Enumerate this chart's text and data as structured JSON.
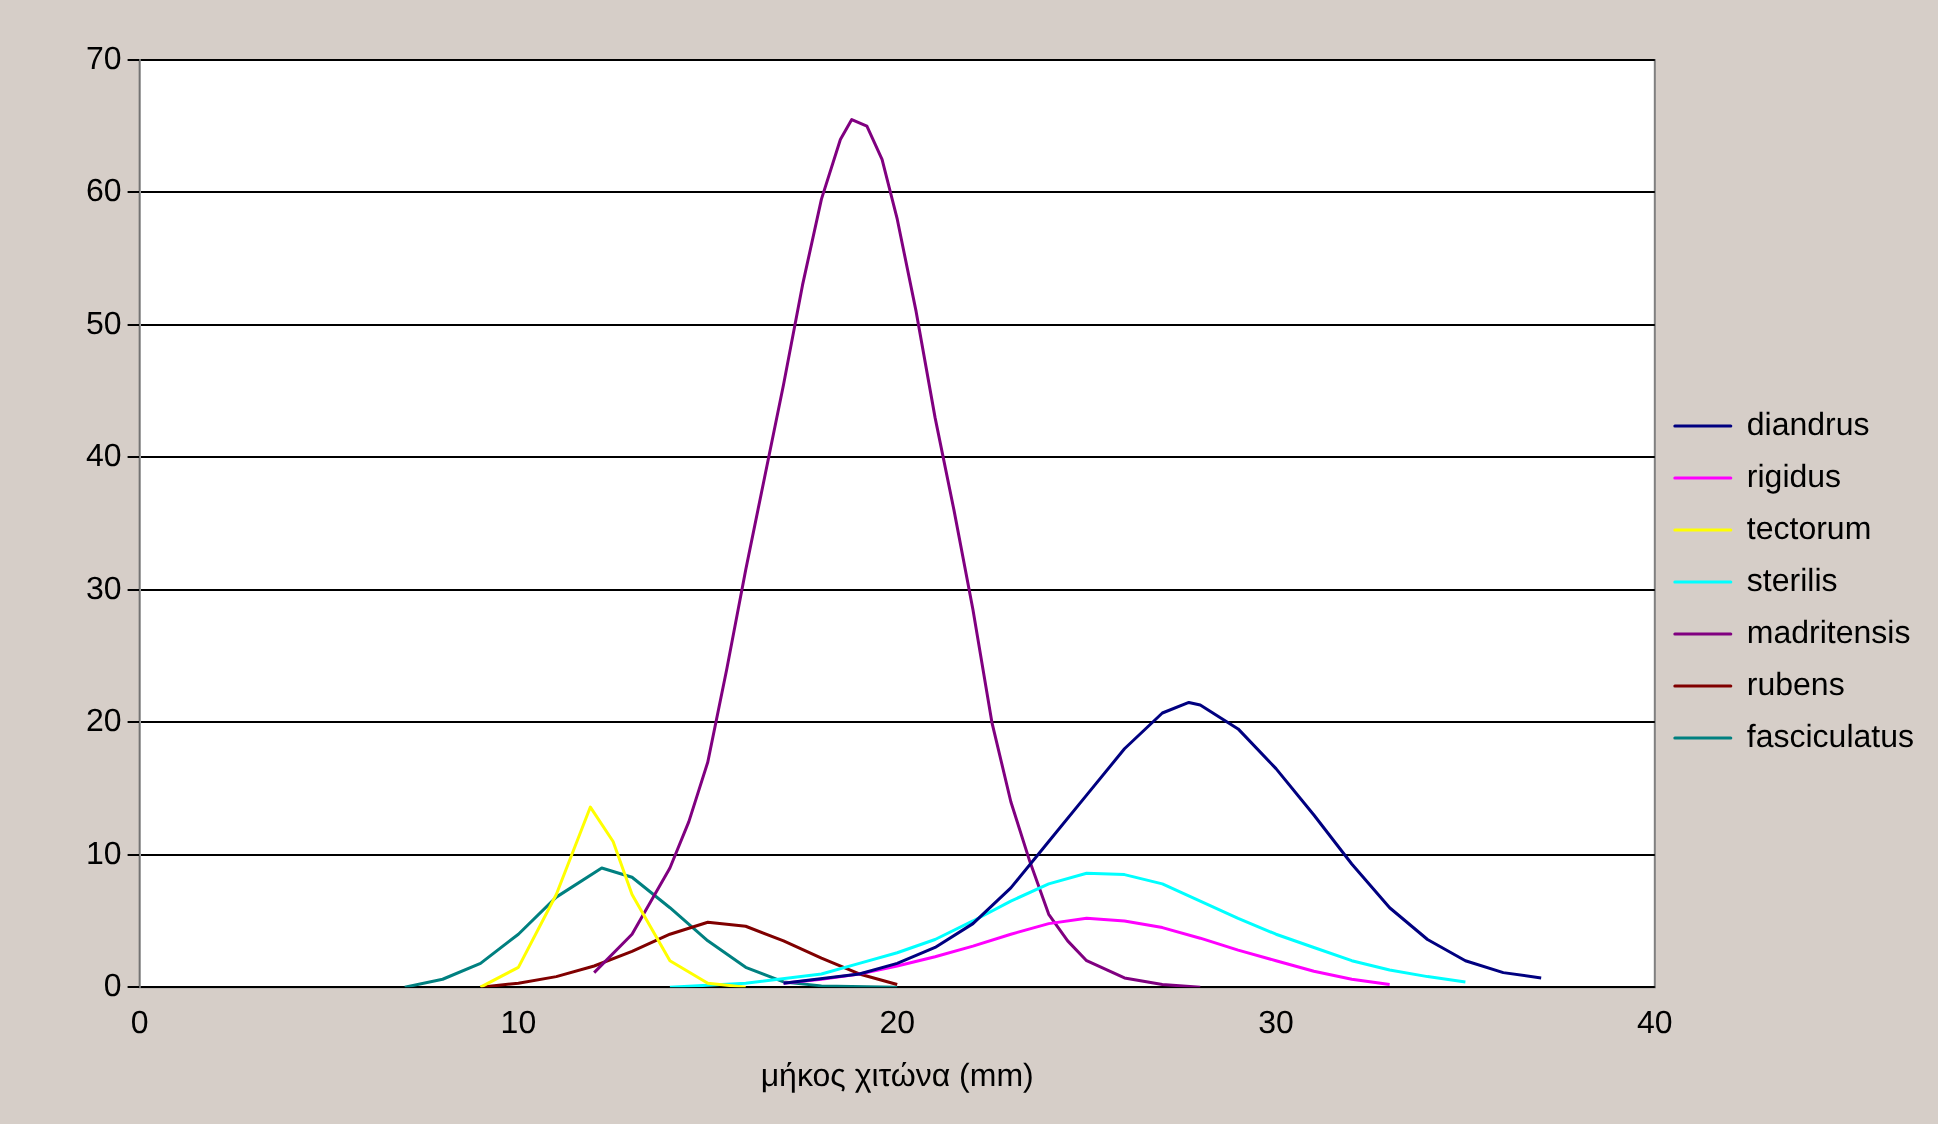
{
  "chart_data": {
    "type": "line",
    "xlabel": "μήκος χιτώνα (mm)",
    "xlim": [
      0,
      40
    ],
    "xticks": [
      0,
      10,
      20,
      30,
      40
    ],
    "ylim": [
      0,
      70
    ],
    "yticks": [
      0,
      10,
      20,
      30,
      40,
      50,
      60,
      70
    ],
    "grid": "y",
    "legend": "right",
    "marker": "none",
    "line_style": "solid",
    "series": [
      {
        "name": "diandrus",
        "color": "#000080",
        "x": [
          17,
          19,
          20,
          21,
          22,
          23,
          24,
          25,
          26,
          27,
          27.7,
          28,
          29,
          30,
          31,
          32,
          33,
          34,
          35,
          36,
          37
        ],
        "values": [
          0.3,
          1,
          1.8,
          3,
          4.8,
          7.5,
          11,
          14.5,
          18,
          20.7,
          21.5,
          21.3,
          19.5,
          16.5,
          13,
          9.3,
          6,
          3.6,
          2,
          1.1,
          0.7
        ]
      },
      {
        "name": "rigidus",
        "color": "#ff00ff",
        "x": [
          17,
          18,
          19,
          20,
          21,
          22,
          23,
          24,
          25,
          26,
          27,
          28,
          29,
          30,
          31,
          32,
          33
        ],
        "values": [
          0.3,
          0.6,
          1,
          1.6,
          2.3,
          3.1,
          4,
          4.8,
          5.2,
          5,
          4.5,
          3.7,
          2.8,
          2,
          1.2,
          0.6,
          0.2
        ]
      },
      {
        "name": "tectorum",
        "color": "#ffff00",
        "x": [
          9,
          10,
          11,
          11.9,
          12.5,
          13,
          14,
          15,
          16
        ],
        "values": [
          0,
          1.5,
          7,
          13.6,
          11,
          7,
          2,
          0.3,
          0
        ]
      },
      {
        "name": "sterilis",
        "color": "#00ffff",
        "x": [
          14,
          16,
          18,
          19,
          20,
          21,
          22,
          23,
          24,
          25,
          26,
          27,
          28,
          29,
          30,
          31,
          32,
          33,
          34,
          35
        ],
        "values": [
          0,
          0.3,
          1,
          1.8,
          2.6,
          3.6,
          5,
          6.5,
          7.8,
          8.6,
          8.5,
          7.8,
          6.5,
          5.2,
          4,
          3,
          2,
          1.3,
          0.8,
          0.4
        ]
      },
      {
        "name": "madritensis",
        "color": "#800080",
        "x": [
          12,
          13,
          14,
          14.5,
          15,
          15.5,
          16,
          16.5,
          17,
          17.5,
          18,
          18.5,
          18.8,
          19.2,
          19.6,
          20,
          20.5,
          21,
          21.5,
          22,
          22.5,
          23,
          23.5,
          24,
          24.5,
          25,
          26,
          27,
          28
        ],
        "values": [
          1.1,
          4,
          9,
          12.5,
          17,
          24,
          31.5,
          38.5,
          45.5,
          53,
          59.5,
          64,
          65.5,
          65,
          62.5,
          58,
          51,
          43,
          36,
          28.5,
          20,
          14,
          9.5,
          5.5,
          3.5,
          2,
          0.7,
          0.2,
          0
        ]
      },
      {
        "name": "rubens",
        "color": "#800000",
        "x": [
          9,
          10,
          11,
          12,
          13,
          14,
          15,
          16,
          17,
          18,
          19,
          20
        ],
        "values": [
          0,
          0.3,
          0.8,
          1.6,
          2.7,
          4,
          4.9,
          4.6,
          3.5,
          2.2,
          1,
          0.2
        ]
      },
      {
        "name": "fasciculatus",
        "color": "#008080",
        "x": [
          7,
          8,
          9,
          10,
          11,
          12.2,
          13,
          14,
          15,
          16,
          17,
          18,
          20
        ],
        "values": [
          0,
          0.6,
          1.8,
          4,
          6.8,
          9,
          8.3,
          6,
          3.5,
          1.5,
          0.4,
          0.1,
          0
        ]
      }
    ]
  }
}
